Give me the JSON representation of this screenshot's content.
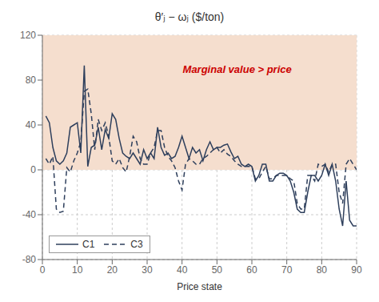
{
  "chart_data": {
    "type": "line",
    "title": "θ′ⱼ − ωⱼ ($/ton)",
    "xlabel": "Price state",
    "x": [
      1,
      2,
      3,
      4,
      5,
      6,
      7,
      8,
      9,
      10,
      11,
      12,
      13,
      14,
      15,
      16,
      17,
      18,
      19,
      20,
      21,
      22,
      23,
      24,
      25,
      26,
      27,
      28,
      29,
      30,
      31,
      32,
      33,
      34,
      35,
      36,
      37,
      38,
      39,
      40,
      41,
      42,
      43,
      44,
      45,
      46,
      47,
      48,
      49,
      50,
      51,
      52,
      53,
      54,
      55,
      56,
      57,
      58,
      59,
      60,
      61,
      62,
      63,
      64,
      65,
      66,
      67,
      68,
      69,
      70,
      71,
      72,
      73,
      74,
      75,
      76,
      77,
      78,
      79,
      80,
      81,
      82,
      83,
      84,
      85,
      86,
      87,
      88,
      89,
      90
    ],
    "series": [
      {
        "name": "C1",
        "color": "#2e3f5c",
        "line_style": "solid",
        "values": [
          48,
          42,
          20,
          8,
          5,
          8,
          15,
          38,
          40,
          42,
          15,
          93,
          3,
          20,
          22,
          38,
          18,
          36,
          28,
          50,
          45,
          28,
          15,
          12,
          10,
          15,
          10,
          5,
          18,
          10,
          15,
          10,
          38,
          20,
          13,
          15,
          10,
          12,
          20,
          30,
          20,
          10,
          20,
          15,
          18,
          8,
          18,
          25,
          18,
          20,
          20,
          22,
          23,
          16,
          10,
          12,
          5,
          3,
          5,
          3,
          -10,
          -5,
          5,
          5,
          -10,
          -10,
          -5,
          -3,
          -3,
          -5,
          -10,
          -20,
          -35,
          -38,
          -38,
          -20,
          -5,
          -5,
          -10,
          -5,
          5,
          -5,
          5,
          -10,
          -35,
          -50,
          -10,
          -45,
          -50,
          -50
        ]
      },
      {
        "name": "C3",
        "color": "#2e3f5c",
        "line_style": "dashed",
        "values": [
          10,
          5,
          12,
          -35,
          -38,
          -37,
          2,
          -2,
          8,
          15,
          25,
          70,
          72,
          50,
          18,
          45,
          35,
          42,
          30,
          8,
          5,
          10,
          2,
          -2,
          12,
          30,
          25,
          10,
          5,
          5,
          15,
          20,
          35,
          35,
          20,
          12,
          8,
          2,
          -10,
          -18,
          5,
          10,
          8,
          5,
          5,
          10,
          12,
          15,
          18,
          20,
          15,
          18,
          14,
          12,
          8,
          5,
          3,
          3,
          3,
          3,
          -8,
          -8,
          -2,
          3,
          -8,
          -8,
          -5,
          -5,
          -5,
          -5,
          -8,
          -10,
          -30,
          -35,
          -35,
          -5,
          -5,
          -10,
          5,
          3,
          5,
          -2,
          5,
          5,
          -20,
          -30,
          5,
          10,
          5,
          0
        ]
      }
    ],
    "xlim": [
      0,
      90
    ],
    "xticks": [
      0,
      10,
      20,
      30,
      40,
      50,
      60,
      70,
      80,
      90
    ],
    "ylim": [
      -80,
      120
    ],
    "yticks": [
      -80,
      -40,
      0,
      40,
      80,
      120
    ],
    "grid": true,
    "legend": "lower left",
    "annotations": [
      {
        "text": "Marginal value > price",
        "color": "#cc0000"
      }
    ],
    "bands": [
      {
        "from": 0,
        "to": 120,
        "color": "#f5dece"
      }
    ]
  }
}
